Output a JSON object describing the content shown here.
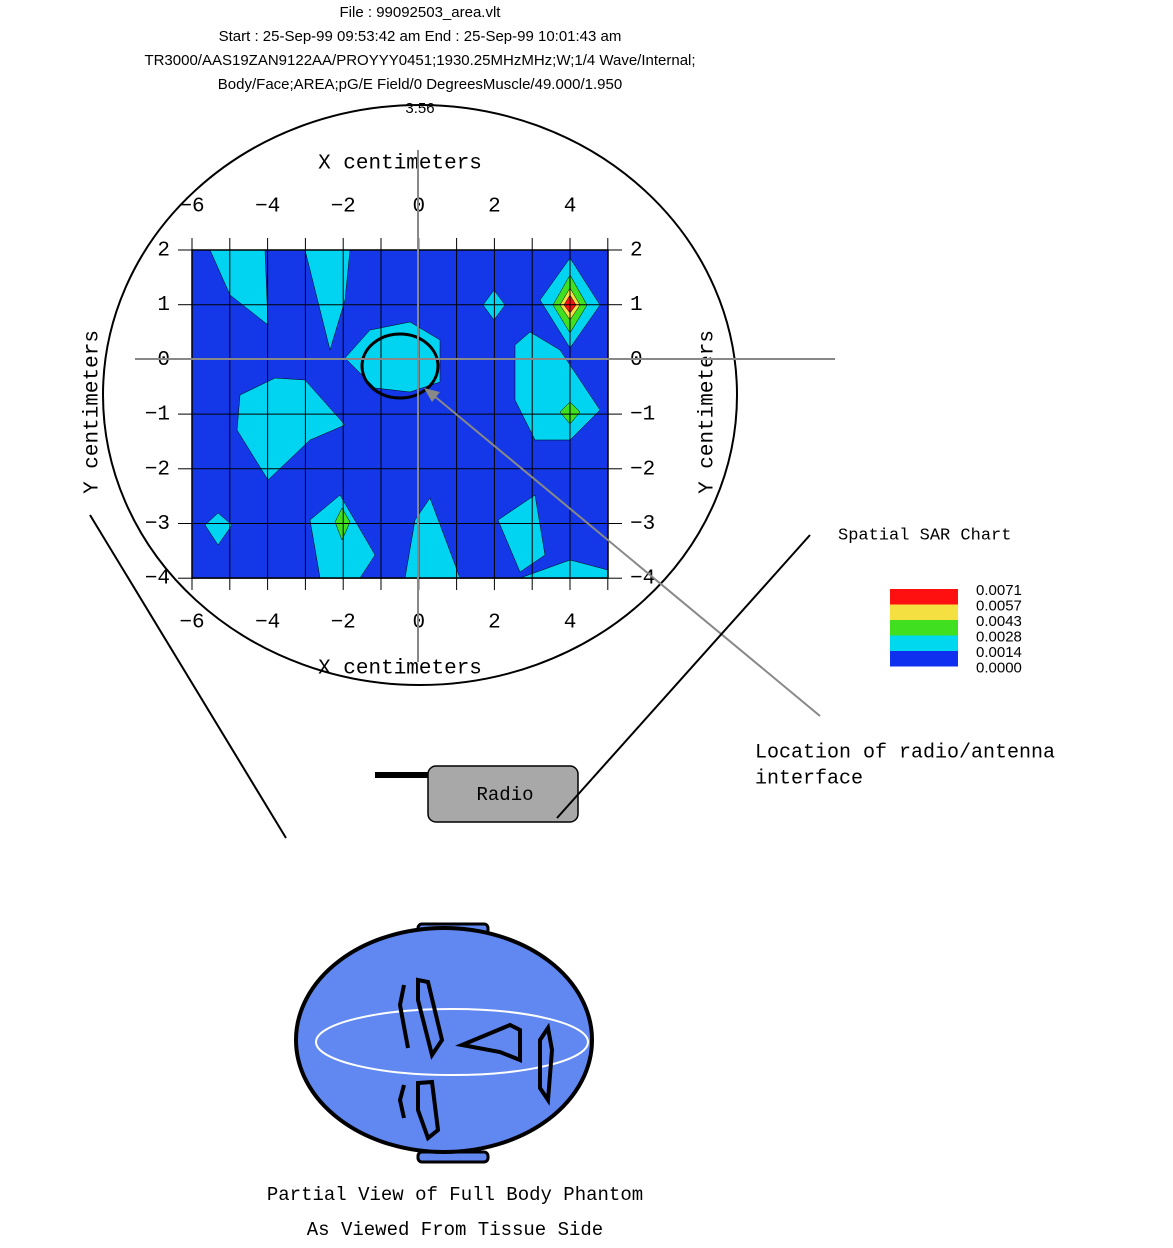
{
  "header": {
    "lines": [
      "File : 99092503_area.vlt",
      "Start : 25-Sep-99 09:53:42 am  End : 25-Sep-99 10:01:43 am",
      "TR3000/AAS19ZAN9122AA/PROYYY0451;1930.25MHzMHz;W;1/4 Wave/Internal;",
      "Body/Face;AREA;pG/E Field/0 DegreesMuscle/49.000/1.950",
      "3.56"
    ]
  },
  "plot": {
    "x_axis_label": "X centimeters",
    "y_axis_label": "Y centimeters",
    "x_ticks": [
      "−6",
      "−4",
      "−2",
      "0",
      "2",
      "4"
    ],
    "y_ticks": [
      "2",
      "1",
      "0",
      "−1",
      "−2",
      "−3",
      "−4"
    ]
  },
  "legend": {
    "title": "Spatial SAR Chart",
    "items": [
      {
        "label": "0.0071",
        "color": "#ff1010"
      },
      {
        "label": "0.0057",
        "color": "#f4e040"
      },
      {
        "label": "0.0043",
        "color": "#40e020"
      },
      {
        "label": "0.0028",
        "color": "#00d8f0"
      },
      {
        "label": "0.0014",
        "color": "#1030f0"
      },
      {
        "label": "0.0000",
        "color": null
      }
    ]
  },
  "annotations": {
    "location_lines": [
      "Location of radio/antenna",
      "interface"
    ],
    "radio": "Radio"
  },
  "footer": {
    "lines": [
      "Partial View of Full Body Phantom",
      "As Viewed From Tissue Side"
    ]
  }
}
